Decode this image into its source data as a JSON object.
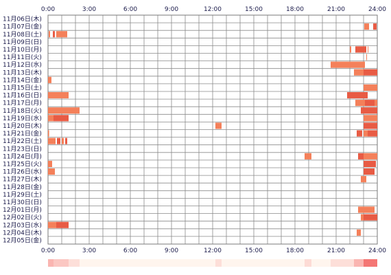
{
  "chart_data": {
    "type": "heatmap",
    "title": "",
    "xlabel": "",
    "ylabel": "",
    "x_ticks": [
      "0:00",
      "3:00",
      "6:00",
      "9:00",
      "12:00",
      "15:00",
      "18:00",
      "21:00",
      "24:00"
    ],
    "xlim": [
      0,
      24
    ],
    "x_unit": "hour of day",
    "grid": true,
    "colors": {
      "bar": "#f4805a",
      "bar_dark": "#e85b44",
      "grid": "#8a8a8a",
      "frame": "#7a7a7a",
      "text": "#1a1a4a"
    },
    "rows": [
      {
        "label": "11月06日(木)",
        "intervals": []
      },
      {
        "label": "11月07日(金)",
        "intervals": [
          [
            23.05,
            23.4
          ],
          [
            23.7,
            23.95
          ]
        ]
      },
      {
        "label": "11月08日(土)",
        "intervals": [
          [
            0.05,
            0.15
          ],
          [
            0.35,
            0.5
          ],
          [
            0.6,
            1.4
          ]
        ]
      },
      {
        "label": "11月09日(日)",
        "intervals": []
      },
      {
        "label": "11月10日(月)",
        "intervals": [
          [
            22.0,
            22.1
          ],
          [
            22.4,
            23.2
          ],
          [
            23.3,
            23.35
          ]
        ]
      },
      {
        "label": "11月11日(火)",
        "intervals": [
          [
            23.2,
            23.25
          ]
        ]
      },
      {
        "label": "11月12日(水)",
        "intervals": [
          [
            20.6,
            23.1
          ]
        ]
      },
      {
        "label": "11月13日(木)",
        "intervals": [
          [
            22.3,
            23.0
          ],
          [
            23.0,
            24.0
          ]
        ]
      },
      {
        "label": "11月14日(金)",
        "intervals": [
          [
            0.0,
            0.25
          ]
        ]
      },
      {
        "label": "11月15日(土)",
        "intervals": [
          [
            23.0,
            24.0
          ]
        ]
      },
      {
        "label": "11月16日(日)",
        "intervals": [
          [
            0.0,
            1.5
          ],
          [
            21.8,
            23.3
          ]
        ]
      },
      {
        "label": "11月17日(月)",
        "intervals": [
          [
            22.4,
            23.1
          ],
          [
            23.1,
            23.8
          ],
          [
            23.8,
            24.0
          ]
        ]
      },
      {
        "label": "11月18日(火)",
        "intervals": [
          [
            0.0,
            2.3
          ],
          [
            22.8,
            24.0
          ]
        ]
      },
      {
        "label": "11月19日(水)",
        "intervals": [
          [
            0.0,
            0.4
          ],
          [
            0.4,
            1.5
          ],
          [
            23.0,
            24.0
          ]
        ]
      },
      {
        "label": "11月20日(木)",
        "intervals": [
          [
            12.2,
            12.65
          ],
          [
            23.0,
            24.0
          ]
        ]
      },
      {
        "label": "11月21日(金)",
        "intervals": [
          [
            0.0,
            0.08
          ],
          [
            22.5,
            22.9
          ],
          [
            23.0,
            23.3
          ],
          [
            23.3,
            24.0
          ]
        ]
      },
      {
        "label": "11月22日(土)",
        "intervals": [
          [
            0.0,
            0.55
          ],
          [
            0.65,
            0.9
          ],
          [
            1.0,
            1.15
          ],
          [
            1.25,
            1.4
          ]
        ]
      },
      {
        "label": "11月23日(日)",
        "intervals": []
      },
      {
        "label": "11月24日(月)",
        "intervals": [
          [
            18.7,
            19.2
          ],
          [
            22.6,
            23.0
          ],
          [
            23.0,
            24.0
          ]
        ]
      },
      {
        "label": "11月25日(火)",
        "intervals": [
          [
            0.0,
            0.3
          ],
          [
            23.0,
            23.9
          ]
        ]
      },
      {
        "label": "11月26日(水)",
        "intervals": [
          [
            0.0,
            0.5
          ],
          [
            23.0,
            23.8
          ]
        ]
      },
      {
        "label": "11月27日(木)",
        "intervals": [
          [
            22.8,
            23.2
          ]
        ]
      },
      {
        "label": "11月28日(金)",
        "intervals": []
      },
      {
        "label": "11月29日(土)",
        "intervals": []
      },
      {
        "label": "11月30日(日)",
        "intervals": []
      },
      {
        "label": "12月01日(月)",
        "intervals": [
          [
            22.6,
            23.8
          ]
        ]
      },
      {
        "label": "12月02日(火)",
        "intervals": [
          [
            22.8,
            23.0
          ],
          [
            23.0,
            24.0
          ]
        ]
      },
      {
        "label": "12月03日(水)",
        "intervals": [
          [
            0.0,
            0.6
          ],
          [
            0.6,
            1.5
          ]
        ]
      },
      {
        "label": "12月04日(木)",
        "intervals": [
          [
            22.5,
            22.8
          ]
        ]
      },
      {
        "label": "12月05日(金)",
        "intervals": []
      }
    ],
    "summary_strip": {
      "shown": true,
      "hot_ranges": [
        [
          0.0,
          0.4
        ],
        [
          0.4,
          1.5
        ],
        [
          1.5,
          2.3
        ],
        [
          12.2,
          12.65
        ],
        [
          18.7,
          19.2
        ],
        [
          20.6,
          22.3
        ],
        [
          22.3,
          23.0
        ],
        [
          23.0,
          24.0
        ]
      ],
      "intensity": [
        0.35,
        0.25,
        0.12,
        0.12,
        0.14,
        0.12,
        0.35,
        0.7
      ]
    }
  }
}
